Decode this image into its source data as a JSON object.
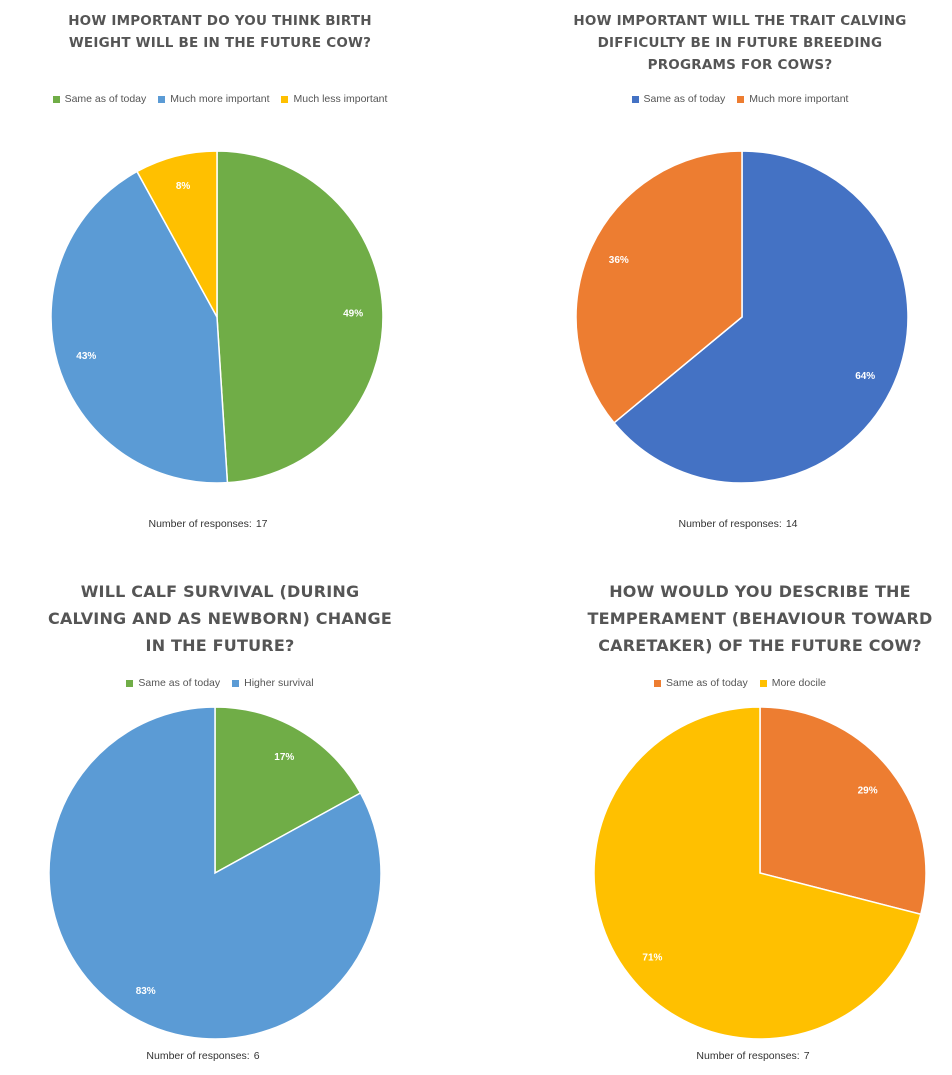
{
  "chart_data": [
    {
      "type": "pie",
      "title_lines": [
        "HOW IMPORTANT  DO YOU THINK BIRTH",
        "WEIGHT WILL BE IN THE FUTURE COW?"
      ],
      "slices": [
        {
          "label": "Same as of today",
          "value": 49,
          "display": "49%",
          "color": "#70ad47"
        },
        {
          "label": "Much more important",
          "value": 43,
          "display": "43%",
          "color": "#5b9bd5"
        },
        {
          "label": "Much less important",
          "value": 8,
          "display": "8%",
          "color": "#ffc000"
        }
      ],
      "footer_label": "Number of responses:",
      "footer_value": "17"
    },
    {
      "type": "pie",
      "title_lines": [
        "HOW IMPORTANT  WILL THE TRAIT CALVING",
        "DIFFICULTY  BE IN FUTURE BREEDING",
        "PROGRAMS  FOR COWS?"
      ],
      "slices": [
        {
          "label": "Same as of today",
          "value": 64,
          "display": "64%",
          "color": "#4472c4"
        },
        {
          "label": "Much more important",
          "value": 36,
          "display": "36%",
          "color": "#ed7d31"
        }
      ],
      "footer_label": "Number  of responses:",
      "footer_value": "14"
    },
    {
      "type": "pie",
      "title_lines": [
        "WILL CALF SURVIVAL (DURING",
        "CALVING AND AS NEWBORN) CHANGE",
        "IN THE FUTURE?"
      ],
      "slices": [
        {
          "label": "Same as of today",
          "value": 17,
          "display": "17%",
          "color": "#70ad47"
        },
        {
          "label": "Higher survival",
          "value": 83,
          "display": "83%",
          "color": "#5b9bd5"
        }
      ],
      "footer_label": "Number  of responses:",
      "footer_value": "6"
    },
    {
      "type": "pie",
      "title_lines": [
        "HOW WOULD YOU DESCRIBE THE",
        "TEMPERAMENT (BEHAVIOUR TOWARD",
        "CARETAKER) OF THE FUTURE COW?"
      ],
      "slices": [
        {
          "label": "Same as of today",
          "value": 29,
          "display": "29%",
          "color": "#ed7d31"
        },
        {
          "label": "More docile",
          "value": 71,
          "display": "71%",
          "color": "#ffc000"
        }
      ],
      "footer_label": "Number  of responses:",
      "footer_value": "7"
    }
  ]
}
